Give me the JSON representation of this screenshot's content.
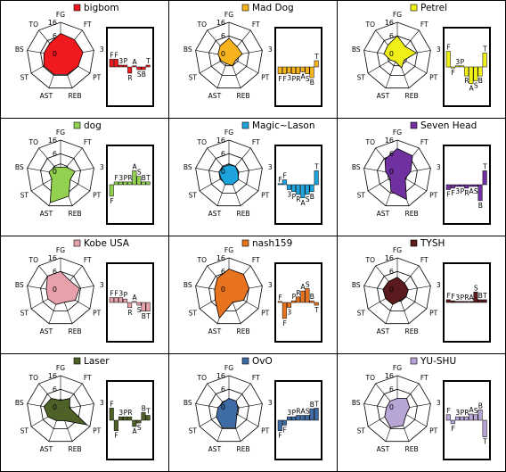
{
  "chart_data": {
    "type": "small-multiples (radar + bar)",
    "radar_axes": [
      "FG",
      "FT",
      "3",
      "PT",
      "REB",
      "AST",
      "ST",
      "BS",
      "TO"
    ],
    "radar_ticks": [
      "16",
      "6",
      "0"
    ],
    "bar_categories": [
      "F",
      "F",
      "3",
      "P",
      "R",
      "A",
      "S",
      "B",
      "T"
    ],
    "grid": "3 x 4",
    "panels": [
      {
        "name": "bigbom",
        "color": "#f0191e",
        "radar": [
          0.67,
          0.64,
          0.67,
          0.6,
          0.57,
          0.57,
          0.57,
          0.5,
          0.5
        ],
        "bars": [
          0.22,
          0.22,
          0.05,
          0.05,
          -0.18,
          0.03,
          -0.08,
          -0.08,
          0.05
        ]
      },
      {
        "name": "Mad Dog",
        "color": "#f6b31e",
        "radar": [
          0.53,
          0.37,
          0.4,
          0.23,
          0.3,
          0.23,
          0.27,
          0.33,
          0.4
        ],
        "bars": [
          -0.2,
          -0.2,
          -0.18,
          -0.2,
          -0.2,
          -0.14,
          -0.2,
          -0.31,
          0.18
        ]
      },
      {
        "name": "Petrel",
        "color": "#f0f018",
        "radar": [
          0.6,
          0.37,
          0.57,
          0.23,
          0.37,
          0.17,
          0.23,
          0.4,
          0.43
        ],
        "bars": [
          0.45,
          -0.03,
          0.03,
          0.03,
          -0.26,
          -0.48,
          -0.4,
          -0.26,
          0.4
        ]
      },
      {
        "name": "dog",
        "color": "#92d050",
        "radar": [
          0.2,
          0.27,
          0.43,
          0.33,
          0.7,
          0.9,
          0.3,
          0.35,
          0.27
        ],
        "bars": [
          -0.33,
          0.08,
          0.08,
          0.08,
          0.08,
          0.4,
          0.24,
          0.08,
          0.08
        ]
      },
      {
        "name": "Magic~Lason",
        "color": "#1ea3dc",
        "radar": [
          0.27,
          0.3,
          0.27,
          0.33,
          0.33,
          0.33,
          0.27,
          0.3,
          0.27
        ],
        "bars": [
          0.03,
          0.14,
          -0.14,
          -0.2,
          -0.28,
          -0.38,
          -0.28,
          -0.2,
          0.4
        ]
      },
      {
        "name": "Seven Head",
        "color": "#7030a0",
        "radar": [
          0.75,
          0.7,
          0.4,
          0.27,
          0.8,
          0.55,
          0.25,
          0.35,
          0.57
        ],
        "bars": [
          -0.14,
          -0.1,
          -0.05,
          -0.05,
          -0.1,
          -0.05,
          -0.05,
          -0.46,
          0.4
        ]
      },
      {
        "name": "Kobe USA",
        "color": "#e6a1ab",
        "radar": [
          0.6,
          0.43,
          0.57,
          0.5,
          0.33,
          0.4,
          0.43,
          0.43,
          0.6
        ],
        "bars": [
          0.14,
          0.14,
          0.14,
          0.1,
          -0.15,
          0.03,
          -0.08,
          -0.25,
          -0.25
        ]
      },
      {
        "name": "nash159",
        "color": "#e8731e",
        "radar": [
          0.67,
          0.67,
          0.6,
          0.5,
          0.33,
          0.83,
          0.47,
          0.43,
          0.53
        ],
        "bars": [
          0.03,
          -0.46,
          -0.14,
          0.05,
          0.16,
          0.33,
          0.4,
          0.05,
          -0.08
        ]
      },
      {
        "name": "TYSH",
        "color": "#5b1a1e",
        "radar": [
          0.43,
          0.33,
          0.33,
          0.3,
          0.27,
          0.4,
          0.4,
          0.43,
          0.4
        ],
        "bars": [
          0.08,
          0.05,
          0.03,
          0.03,
          0.03,
          0.03,
          0.3,
          0.08,
          0.08
        ]
      },
      {
        "name": "Laser",
        "color": "#4e6227",
        "radar": [
          0.27,
          0.43,
          0.27,
          0.9,
          0.35,
          0.35,
          0.43,
          0.5,
          0.43
        ],
        "bars": [
          0.35,
          -0.3,
          0.1,
          0.1,
          0.1,
          -0.18,
          -0.08,
          0.22,
          0.14
        ]
      },
      {
        "name": "OvO",
        "color": "#3e6aa5",
        "radar": [
          0.33,
          0.33,
          0.27,
          0.27,
          0.57,
          0.57,
          0.43,
          0.33,
          0.27
        ],
        "bars": [
          -0.3,
          -0.14,
          0.1,
          0.1,
          0.14,
          0.14,
          0.14,
          0.33,
          0.35
        ]
      },
      {
        "name": "YU-SHU",
        "color": "#b7a5d6",
        "radar": [
          0.33,
          0.43,
          0.37,
          0.3,
          0.5,
          0.57,
          0.43,
          0.33,
          0.33
        ],
        "bars": [
          0.16,
          -0.1,
          0.1,
          0.1,
          0.1,
          0.18,
          0.16,
          0.3,
          -0.48
        ]
      }
    ]
  }
}
